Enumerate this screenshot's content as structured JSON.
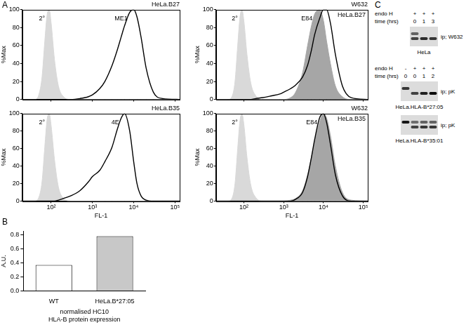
{
  "panel_labels": [
    "A",
    "B",
    "C"
  ],
  "chart_data": [
    {
      "type": "line",
      "title": "HeLa.B27",
      "x": [
        20,
        40,
        50,
        60,
        70,
        80,
        90,
        100,
        120,
        150,
        200,
        300,
        500,
        800,
        1000,
        1500,
        2000,
        3000,
        4000,
        5000,
        6000,
        8000,
        10000,
        12000,
        15000,
        20000,
        30000,
        50000,
        130000
      ],
      "series": [
        {
          "name": "2°",
          "type": "area",
          "color": "#d9d9d9",
          "values": [
            0,
            0,
            5,
            25,
            65,
            95,
            100,
            85,
            45,
            15,
            3,
            0,
            0,
            0,
            0,
            0,
            0,
            0,
            0,
            0,
            0,
            0,
            0,
            0,
            0,
            0,
            0,
            0,
            0
          ]
        },
        {
          "name": "ME1",
          "type": "line",
          "color": "#000000",
          "values": [
            0,
            0,
            0,
            0,
            0,
            0,
            0,
            0,
            0,
            0,
            0,
            0,
            1,
            3,
            5,
            12,
            20,
            38,
            55,
            70,
            82,
            97,
            100,
            92,
            70,
            35,
            8,
            1,
            0
          ]
        }
      ],
      "xlim": [
        20,
        130000
      ],
      "ylim": [
        0,
        100
      ],
      "xticks": [
        {
          "value": 100,
          "label": "10²"
        },
        {
          "value": 1000,
          "label": "10³"
        },
        {
          "value": 10000,
          "label": "10⁴"
        },
        {
          "value": 100000,
          "label": "10⁵"
        }
      ],
      "yticks": [
        0,
        20,
        40,
        60,
        80,
        100
      ],
      "log": "x",
      "grid": false,
      "tick_labels": "y",
      "y_label": "%Max"
    },
    {
      "type": "line",
      "title": "W632",
      "annotations": [
        "HeLa.B27"
      ],
      "x": [
        20,
        40,
        50,
        60,
        70,
        80,
        90,
        100,
        120,
        150,
        200,
        300,
        500,
        800,
        1000,
        1500,
        2000,
        3000,
        4000,
        5000,
        6000,
        8000,
        10000,
        12000,
        15000,
        20000,
        30000,
        50000,
        130000
      ],
      "series": [
        {
          "name": "2°",
          "type": "area",
          "color": "#d9d9d9",
          "values": [
            0,
            0,
            3,
            20,
            60,
            92,
            100,
            88,
            50,
            18,
            4,
            0,
            0,
            0,
            0,
            0,
            0,
            0,
            0,
            0,
            0,
            0,
            0,
            0,
            0,
            0,
            0,
            0,
            0
          ]
        },
        {
          "name": "E84",
          "type": "area",
          "color": "#a6a6a6",
          "values": [
            0,
            0,
            0,
            0,
            0,
            0,
            0,
            0,
            0,
            0,
            0,
            0,
            0,
            0,
            0,
            2,
            8,
            30,
            60,
            82,
            95,
            100,
            88,
            65,
            40,
            15,
            3,
            0,
            0
          ]
        },
        {
          "type": "line",
          "color": "#000000",
          "values": [
            0,
            0,
            0,
            0,
            0,
            0,
            0,
            0,
            0,
            0,
            1,
            2,
            4,
            6,
            8,
            12,
            16,
            25,
            38,
            55,
            72,
            90,
            100,
            100,
            85,
            50,
            15,
            2,
            0
          ]
        }
      ],
      "xlim": [
        20,
        130000
      ],
      "ylim": [
        0,
        100
      ],
      "xticks": [
        {
          "value": 100,
          "label": "10²"
        },
        {
          "value": 1000,
          "label": "10³"
        },
        {
          "value": 10000,
          "label": "10⁴"
        },
        {
          "value": 100000,
          "label": "10⁵"
        }
      ],
      "yticks": [
        0,
        20,
        40,
        60,
        80,
        100
      ],
      "log": "x",
      "grid": false,
      "tick_labels": "y",
      "y_label": "%Max"
    },
    {
      "type": "line",
      "title": "HeLa.B35",
      "x": [
        20,
        40,
        50,
        60,
        70,
        80,
        90,
        100,
        120,
        150,
        200,
        300,
        500,
        800,
        1000,
        1500,
        2000,
        3000,
        4000,
        5000,
        6000,
        8000,
        10000,
        12000,
        15000,
        20000,
        30000,
        50000,
        130000
      ],
      "series": [
        {
          "name": "2°",
          "type": "area",
          "color": "#d9d9d9",
          "values": [
            0,
            0,
            4,
            22,
            62,
            94,
            100,
            86,
            48,
            16,
            3,
            0,
            0,
            0,
            0,
            0,
            0,
            0,
            0,
            0,
            0,
            0,
            0,
            0,
            0,
            0,
            0,
            0,
            0
          ]
        },
        {
          "name": "4E",
          "type": "line",
          "color": "#000000",
          "values": [
            0,
            0,
            0,
            0,
            0,
            0,
            0,
            0,
            0,
            1,
            3,
            6,
            12,
            22,
            28,
            35,
            45,
            62,
            82,
            95,
            100,
            80,
            45,
            20,
            6,
            1,
            0,
            0,
            0
          ]
        }
      ],
      "xlim": [
        20,
        130000
      ],
      "ylim": [
        0,
        100
      ],
      "xticks": [
        {
          "value": 100,
          "label": "10²"
        },
        {
          "value": 1000,
          "label": "10³"
        },
        {
          "value": 10000,
          "label": "10⁴"
        },
        {
          "value": 100000,
          "label": "10⁵"
        }
      ],
      "yticks": [
        0,
        20,
        40,
        60,
        80,
        100
      ],
      "log": "x",
      "grid": false,
      "tick_labels": true,
      "x_label": "FL-1",
      "y_label": "%Max"
    },
    {
      "type": "line",
      "title": "W632",
      "annotations": [
        "HeLa.B35"
      ],
      "x": [
        20,
        40,
        50,
        60,
        70,
        80,
        90,
        100,
        120,
        150,
        200,
        300,
        500,
        800,
        1000,
        1500,
        2000,
        3000,
        4000,
        5000,
        6000,
        8000,
        10000,
        12000,
        15000,
        20000,
        30000,
        50000,
        130000
      ],
      "series": [
        {
          "name": "2°",
          "type": "area",
          "color": "#d9d9d9",
          "values": [
            0,
            0,
            3,
            20,
            60,
            92,
            100,
            88,
            50,
            18,
            4,
            0,
            0,
            0,
            0,
            0,
            0,
            0,
            0,
            0,
            0,
            0,
            0,
            0,
            0,
            0,
            0,
            0,
            0
          ]
        },
        {
          "name": "E84",
          "type": "area",
          "color": "#a6a6a6",
          "values": [
            0,
            0,
            0,
            0,
            0,
            0,
            0,
            0,
            0,
            0,
            0,
            0,
            0,
            0,
            0,
            1,
            3,
            12,
            30,
            50,
            68,
            90,
            100,
            95,
            75,
            40,
            10,
            1,
            0
          ]
        },
        {
          "type": "line",
          "color": "#000000",
          "values": [
            0,
            0,
            0,
            0,
            0,
            0,
            0,
            0,
            0,
            0,
            0,
            0,
            0,
            0,
            0,
            0,
            2,
            10,
            28,
            50,
            70,
            95,
            100,
            90,
            65,
            30,
            6,
            0,
            0
          ]
        }
      ],
      "xlim": [
        20,
        130000
      ],
      "ylim": [
        0,
        100
      ],
      "xticks": [
        {
          "value": 100,
          "label": "10²"
        },
        {
          "value": 1000,
          "label": "10³"
        },
        {
          "value": 10000,
          "label": "10⁴"
        },
        {
          "value": 100000,
          "label": "10⁵"
        }
      ],
      "yticks": [
        0,
        20,
        40,
        60,
        80,
        100
      ],
      "log": "x",
      "grid": false,
      "tick_labels": true,
      "x_label": "FL-1",
      "y_label": "%Max"
    },
    {
      "type": "bar",
      "categories": [
        "WT",
        "HeLa.B*27:05"
      ],
      "values": [
        0.37,
        0.78
      ],
      "colors": [
        "#ffffff",
        "#c8c8c8"
      ],
      "ylim": [
        0,
        0.85
      ],
      "yticks": [
        {
          "value": 0,
          "label": "0.0"
        },
        {
          "value": 0.2,
          "label": "0.2"
        },
        {
          "value": 0.4,
          "label": "0.4"
        },
        {
          "value": 0.6,
          "label": "0.6"
        },
        {
          "value": 0.8,
          "label": "0.8"
        }
      ],
      "grid": false,
      "y_label": "A.U.",
      "x_label": [
        "normalised HC10",
        "HLA-B protein expression"
      ]
    }
  ],
  "blots": [
    {
      "rows": [
        {
          "label": "endo H",
          "values": [
            "+",
            "+",
            "+"
          ]
        },
        {
          "label": "time (hrs)",
          "values": [
            0,
            1,
            3
          ]
        }
      ],
      "gels": [
        {
          "ip": "ip; W632",
          "cell_line": "HeLa"
        }
      ]
    },
    {
      "rows": [
        {
          "label": "endo H",
          "values": [
            "-",
            "+",
            "+",
            "+"
          ]
        },
        {
          "label": "time (hrs)",
          "values": [
            0,
            0,
            1,
            2
          ]
        }
      ],
      "gels": [
        {
          "ip": "ip; pK",
          "cell_line": "HeLa.HLA-B*27:05"
        },
        {
          "ip": "ip; pK",
          "cell_line": "HeLa.HLA-B*35:01"
        }
      ]
    }
  ]
}
